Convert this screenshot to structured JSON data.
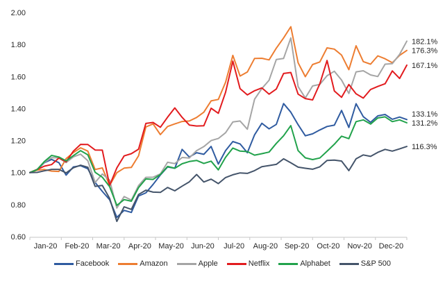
{
  "chart_data": {
    "type": "line",
    "title": "",
    "xlabel": "",
    "ylabel": "",
    "grid": false,
    "legend_position": "bottom",
    "ylim": [
      0.6,
      2.0
    ],
    "ytick_values": [
      2.0,
      1.8,
      1.6,
      1.4,
      1.2,
      1.0,
      0.8,
      0.6
    ],
    "ytick_labels": [
      "2.00",
      "1.80",
      "1.60",
      "1.40",
      "1.20",
      "1.00",
      "0.80",
      "0.60"
    ],
    "categories": [
      "Jan-20",
      "Feb-20",
      "Mar-20",
      "Apr-20",
      "May-20",
      "Jun-20",
      "Jul-20",
      "Aug-20",
      "Sep-20",
      "Oct-20",
      "Nov-20",
      "Dec-20"
    ],
    "x_sampling": "weekly, 53 points Jan 1 - Dec 31 2020, indexed to 1.00",
    "series": [
      {
        "name": "Facebook",
        "color": "#2F5BA0",
        "end_label": "133.1%",
        "values": [
          1.0,
          1.017,
          1.062,
          1.082,
          1.062,
          0.984,
          1.035,
          1.043,
          1.024,
          0.938,
          0.882,
          0.83,
          0.72,
          0.764,
          0.751,
          0.854,
          0.873,
          0.926,
          0.985,
          1.035,
          1.027,
          1.145,
          1.097,
          1.124,
          1.114,
          1.163,
          1.053,
          1.137,
          1.194,
          1.179,
          1.124,
          1.236,
          1.308,
          1.273,
          1.301,
          1.431,
          1.377,
          1.299,
          1.23,
          1.242,
          1.266,
          1.288,
          1.296,
          1.388,
          1.282,
          1.43,
          1.349,
          1.314,
          1.354,
          1.363,
          1.333,
          1.347,
          1.331
        ]
      },
      {
        "name": "Amazon",
        "color": "#ED7D31",
        "end_label": "176.3%",
        "values": [
          1.0,
          1.015,
          1.019,
          1.009,
          1.007,
          1.087,
          1.125,
          1.155,
          1.134,
          1.019,
          1.029,
          0.92,
          0.999,
          1.028,
          1.032,
          1.105,
          1.285,
          1.304,
          1.237,
          1.288,
          1.304,
          1.319,
          1.322,
          1.344,
          1.377,
          1.448,
          1.457,
          1.564,
          1.732,
          1.603,
          1.628,
          1.713,
          1.714,
          1.704,
          1.777,
          1.841,
          1.911,
          1.686,
          1.599,
          1.675,
          1.691,
          1.779,
          1.771,
          1.734,
          1.643,
          1.792,
          1.693,
          1.677,
          1.729,
          1.711,
          1.686,
          1.732,
          1.763
        ]
      },
      {
        "name": "Apple",
        "color": "#A5A5A5",
        "end_label": "182.1%",
        "values": [
          1.0,
          1.02,
          1.064,
          1.093,
          1.092,
          1.062,
          1.098,
          1.115,
          1.074,
          0.938,
          0.991,
          0.953,
          0.778,
          0.85,
          0.828,
          0.919,
          0.97,
          0.971,
          0.992,
          1.064,
          1.056,
          1.094,
          1.091,
          1.137,
          1.162,
          1.2,
          1.213,
          1.249,
          1.316,
          1.322,
          1.271,
          1.458,
          1.525,
          1.577,
          1.706,
          1.713,
          1.841,
          1.537,
          1.466,
          1.541,
          1.551,
          1.605,
          1.633,
          1.578,
          1.494,
          1.629,
          1.636,
          1.61,
          1.6,
          1.677,
          1.68,
          1.738,
          1.821
        ]
      },
      {
        "name": "Netflix",
        "color": "#E21B1E",
        "end_label": "167.1%",
        "values": [
          1.0,
          1.019,
          1.04,
          1.05,
          1.091,
          1.067,
          1.134,
          1.176,
          1.175,
          1.141,
          1.14,
          0.92,
          1.029,
          1.104,
          1.118,
          1.146,
          1.307,
          1.313,
          1.283,
          1.346,
          1.404,
          1.345,
          1.297,
          1.291,
          1.292,
          1.402,
          1.37,
          1.501,
          1.696,
          1.524,
          1.485,
          1.511,
          1.529,
          1.49,
          1.522,
          1.619,
          1.625,
          1.49,
          1.462,
          1.454,
          1.555,
          1.7,
          1.51,
          1.47,
          1.55,
          1.492,
          1.465,
          1.519,
          1.538,
          1.555,
          1.635,
          1.588,
          1.671
        ]
      },
      {
        "name": "Alphabet",
        "color": "#21A24B",
        "end_label": "131.2%",
        "values": [
          1.0,
          1.018,
          1.069,
          1.107,
          1.097,
          1.073,
          1.106,
          1.137,
          1.111,
          1.002,
          0.971,
          0.912,
          0.795,
          0.831,
          0.821,
          0.906,
          0.96,
          0.957,
          0.988,
          1.038,
          1.027,
          1.055,
          1.069,
          1.076,
          1.057,
          1.071,
          1.017,
          1.095,
          1.153,
          1.134,
          1.131,
          1.109,
          1.118,
          1.128,
          1.182,
          1.23,
          1.293,
          1.137,
          1.092,
          1.081,
          1.091,
          1.133,
          1.177,
          1.227,
          1.212,
          1.318,
          1.329,
          1.303,
          1.341,
          1.348,
          1.318,
          1.329,
          1.311
        ]
      },
      {
        "name": "S&P 500",
        "color": "#44546A",
        "end_label": "116.3%",
        "values": [
          1.0,
          1.001,
          1.011,
          1.02,
          1.02,
          0.998,
          1.03,
          1.046,
          1.033,
          0.914,
          0.92,
          0.839,
          0.695,
          0.786,
          0.77,
          0.863,
          0.89,
          0.878,
          0.876,
          0.907,
          0.886,
          0.915,
          0.942,
          0.988,
          0.941,
          0.959,
          0.931,
          0.969,
          0.986,
          0.998,
          0.995,
          1.012,
          1.037,
          1.044,
          1.051,
          1.086,
          1.061,
          1.034,
          1.027,
          1.021,
          1.036,
          1.076,
          1.078,
          1.072,
          1.012,
          1.086,
          1.11,
          1.101,
          1.126,
          1.145,
          1.134,
          1.148,
          1.163
        ]
      }
    ],
    "axis_color": "#C6C6C6",
    "text_color": "#262626"
  }
}
